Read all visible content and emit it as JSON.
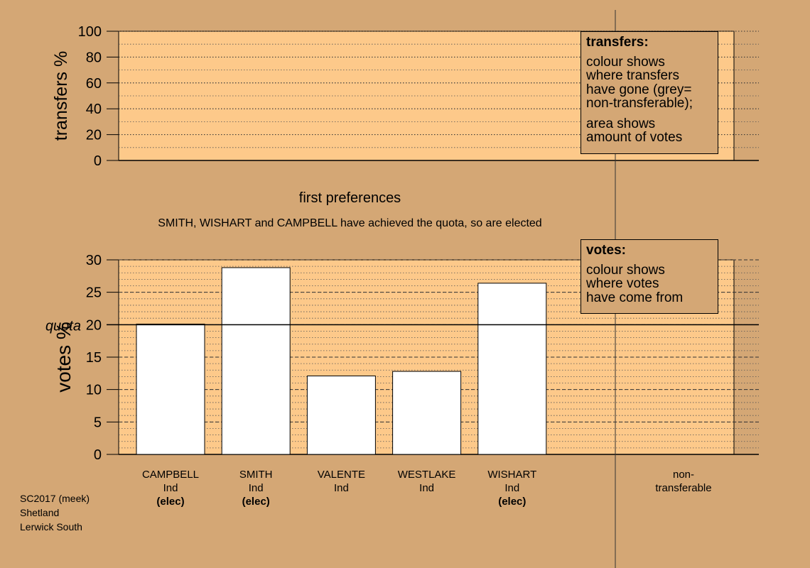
{
  "stage": {
    "title": "first preferences",
    "note": "SMITH, WISHART and CAMPBELL have achieved the quota, so are elected"
  },
  "legend_transfers": {
    "title": "transfers:",
    "line1": "colour shows",
    "line2": "where transfers",
    "line3": "have gone (grey=",
    "line4": "non-transferable);",
    "line5": "area shows",
    "line6": "amount of votes"
  },
  "legend_votes": {
    "title": "votes:",
    "line1": "colour shows",
    "line2": "where votes",
    "line3": "have come from"
  },
  "footer": {
    "line1": "SC2017 (meek)",
    "line2": "Shetland",
    "line3": "Lerwick South"
  },
  "colors": {
    "page_background": "#d4a775",
    "plot_background": "#fdc98a",
    "bar_fill": "#ffffff",
    "axis": "#000000"
  },
  "chart_data": [
    {
      "type": "bar",
      "name": "transfers",
      "ylabel": "transfers %",
      "ylim": [
        0,
        100
      ],
      "yticks": [
        0,
        20,
        40,
        60,
        80,
        100
      ],
      "series": []
    },
    {
      "type": "bar",
      "name": "votes",
      "ylabel": "votes %",
      "ylim": [
        0,
        30
      ],
      "yticks": [
        0,
        5,
        10,
        15,
        20,
        25,
        30
      ],
      "quota": 20,
      "quota_label": "quota",
      "categories": [
        {
          "name": "CAMPBELL",
          "party": "Ind",
          "status": "(elec)",
          "value": 20.1
        },
        {
          "name": "SMITH",
          "party": "Ind",
          "status": "(elec)",
          "value": 28.8
        },
        {
          "name": "VALENTE",
          "party": "Ind",
          "status": "",
          "value": 12.1
        },
        {
          "name": "WESTLAKE",
          "party": "Ind",
          "status": "",
          "value": 12.8
        },
        {
          "name": "WISHART",
          "party": "Ind",
          "status": "(elec)",
          "value": 26.4
        }
      ],
      "non_transferable_label": "non-\ntransferable",
      "non_transferable_value": 0
    }
  ]
}
